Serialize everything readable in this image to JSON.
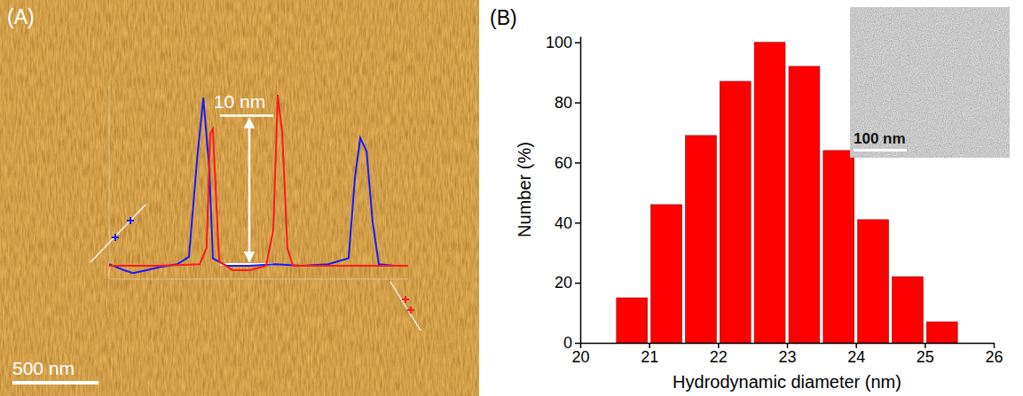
{
  "chart_data": [
    {
      "type": "line",
      "panel_label": "(A)",
      "tick_labels": false,
      "xlim": [
        0,
        100
      ],
      "ylim": [
        -1,
        12
      ],
      "series": [
        {
          "color": "#1a1aff",
          "x": [
            0,
            5,
            8,
            12.5,
            16.9,
            22.8,
            26.7,
            29.4,
            31.5,
            33.5,
            34.7,
            39.2,
            46.6,
            55.5,
            64.4,
            73.3,
            80.1,
            82.2,
            84,
            86.1,
            88.1,
            90.2,
            95.5,
            100
          ],
          "values": [
            0,
            -0.4,
            -0.6,
            -0.4,
            -0.2,
            0,
            0.5,
            7,
            11.2,
            6.4,
            0.4,
            -0.1,
            -0.1,
            0,
            -0.1,
            0,
            0.4,
            5.8,
            8.5,
            7.6,
            2.9,
            0,
            -0.1,
            -0.1
          ]
        },
        {
          "color": "#ff1a1a",
          "x": [
            0,
            16.9,
            30.3,
            32.6,
            33.8,
            34.7,
            35.6,
            36.8,
            41.2,
            47.2,
            52.5,
            54.9,
            56.4,
            57.9,
            59.6,
            61.4,
            67.4,
            82.2,
            100
          ],
          "values": [
            -0.1,
            -0.1,
            0,
            1.1,
            8.8,
            9.1,
            5.2,
            0.2,
            -0.4,
            -0.4,
            -0.1,
            2.3,
            11.4,
            8.8,
            1.1,
            -0.1,
            -0.1,
            -0.1,
            -0.1
          ]
        }
      ],
      "annotations": [
        {
          "text": "10 nm",
          "from": 0,
          "to": 10
        },
        {
          "text": "500 nm"
        }
      ]
    },
    {
      "type": "histogram",
      "panel_label": "(B)",
      "x_label": "Hydrodynamic diameter (nm)",
      "y_label": "Number (%)",
      "bins": [
        20.5,
        21,
        21.5,
        22,
        22.5,
        23,
        23.5,
        24,
        24.5,
        25,
        25.5
      ],
      "values": [
        15,
        46,
        69,
        87,
        100,
        92,
        64,
        41,
        22,
        7
      ],
      "color": "#ff0000",
      "xlim": [
        20,
        26
      ],
      "ylim": [
        0,
        102
      ],
      "xticks": [
        20,
        21,
        22,
        23,
        24,
        25,
        26
      ],
      "yticks": [
        0,
        20,
        40,
        60,
        80,
        100
      ],
      "annotations": [
        {
          "text": "100 nm"
        }
      ]
    }
  ]
}
